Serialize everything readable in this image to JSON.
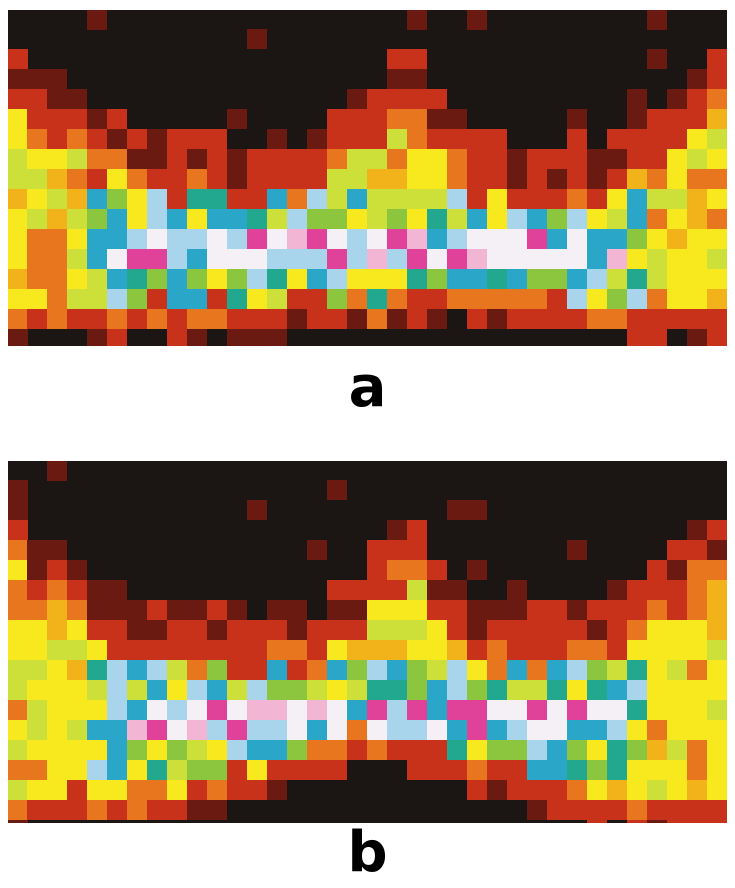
{
  "panels": [
    {
      "id": "a",
      "label": "a"
    },
    {
      "id": "b",
      "label": "b"
    }
  ],
  "palette": {
    "background": "#1b1614",
    "dark_red": "#6b1a12",
    "red": "#c8321a",
    "orange": "#e8761e",
    "amber": "#f2b21a",
    "yellow": "#f8e81e",
    "yellow_green": "#cde03a",
    "green": "#8cc63e",
    "teal": "#22a88e",
    "cyan": "#2aa6c8",
    "light_blue": "#a8d4ec",
    "white": "#f4f0f6",
    "pink": "#f2b6d4",
    "magenta": "#e0429a",
    "purple": "#7a2a8c",
    "black": "#111111"
  }
}
